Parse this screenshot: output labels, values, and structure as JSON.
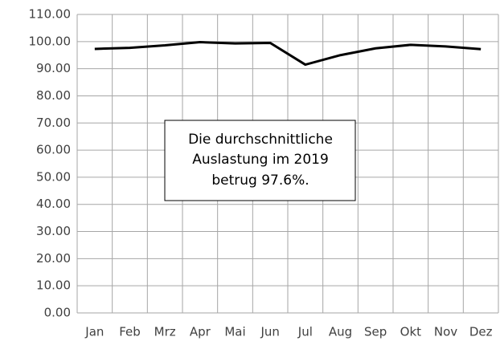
{
  "chart_data": {
    "type": "line",
    "categories": [
      "Jan",
      "Feb",
      "Mrz",
      "Apr",
      "Mai",
      "Jun",
      "Jul",
      "Aug",
      "Sep",
      "Okt",
      "Nov",
      "Dez"
    ],
    "series": [
      {
        "color": "#000000",
        "values": [
          97.3,
          97.7,
          98.6,
          99.8,
          99.3,
          99.5,
          91.5,
          95.0,
          97.5,
          98.8,
          98.2,
          97.2
        ]
      }
    ],
    "ylim": [
      0,
      110
    ],
    "yticks": [
      {
        "value": 0,
        "label": "0.00"
      },
      {
        "value": 10,
        "label": "10.00"
      },
      {
        "value": 20,
        "label": "20.00"
      },
      {
        "value": 30,
        "label": "30.00"
      },
      {
        "value": 40,
        "label": "40.00"
      },
      {
        "value": 50,
        "label": "50.00"
      },
      {
        "value": 60,
        "label": "60.00"
      },
      {
        "value": 70,
        "label": "70.00"
      },
      {
        "value": 80,
        "label": "80.00"
      },
      {
        "value": 90,
        "label": "90.00"
      },
      {
        "value": 100,
        "label": "100.00"
      },
      {
        "value": 110,
        "label": "110.00"
      }
    ],
    "grid": true,
    "annotation": [
      "Die durchschnittliche",
      "Auslastung im 2019",
      "betrug 97.6%."
    ]
  }
}
